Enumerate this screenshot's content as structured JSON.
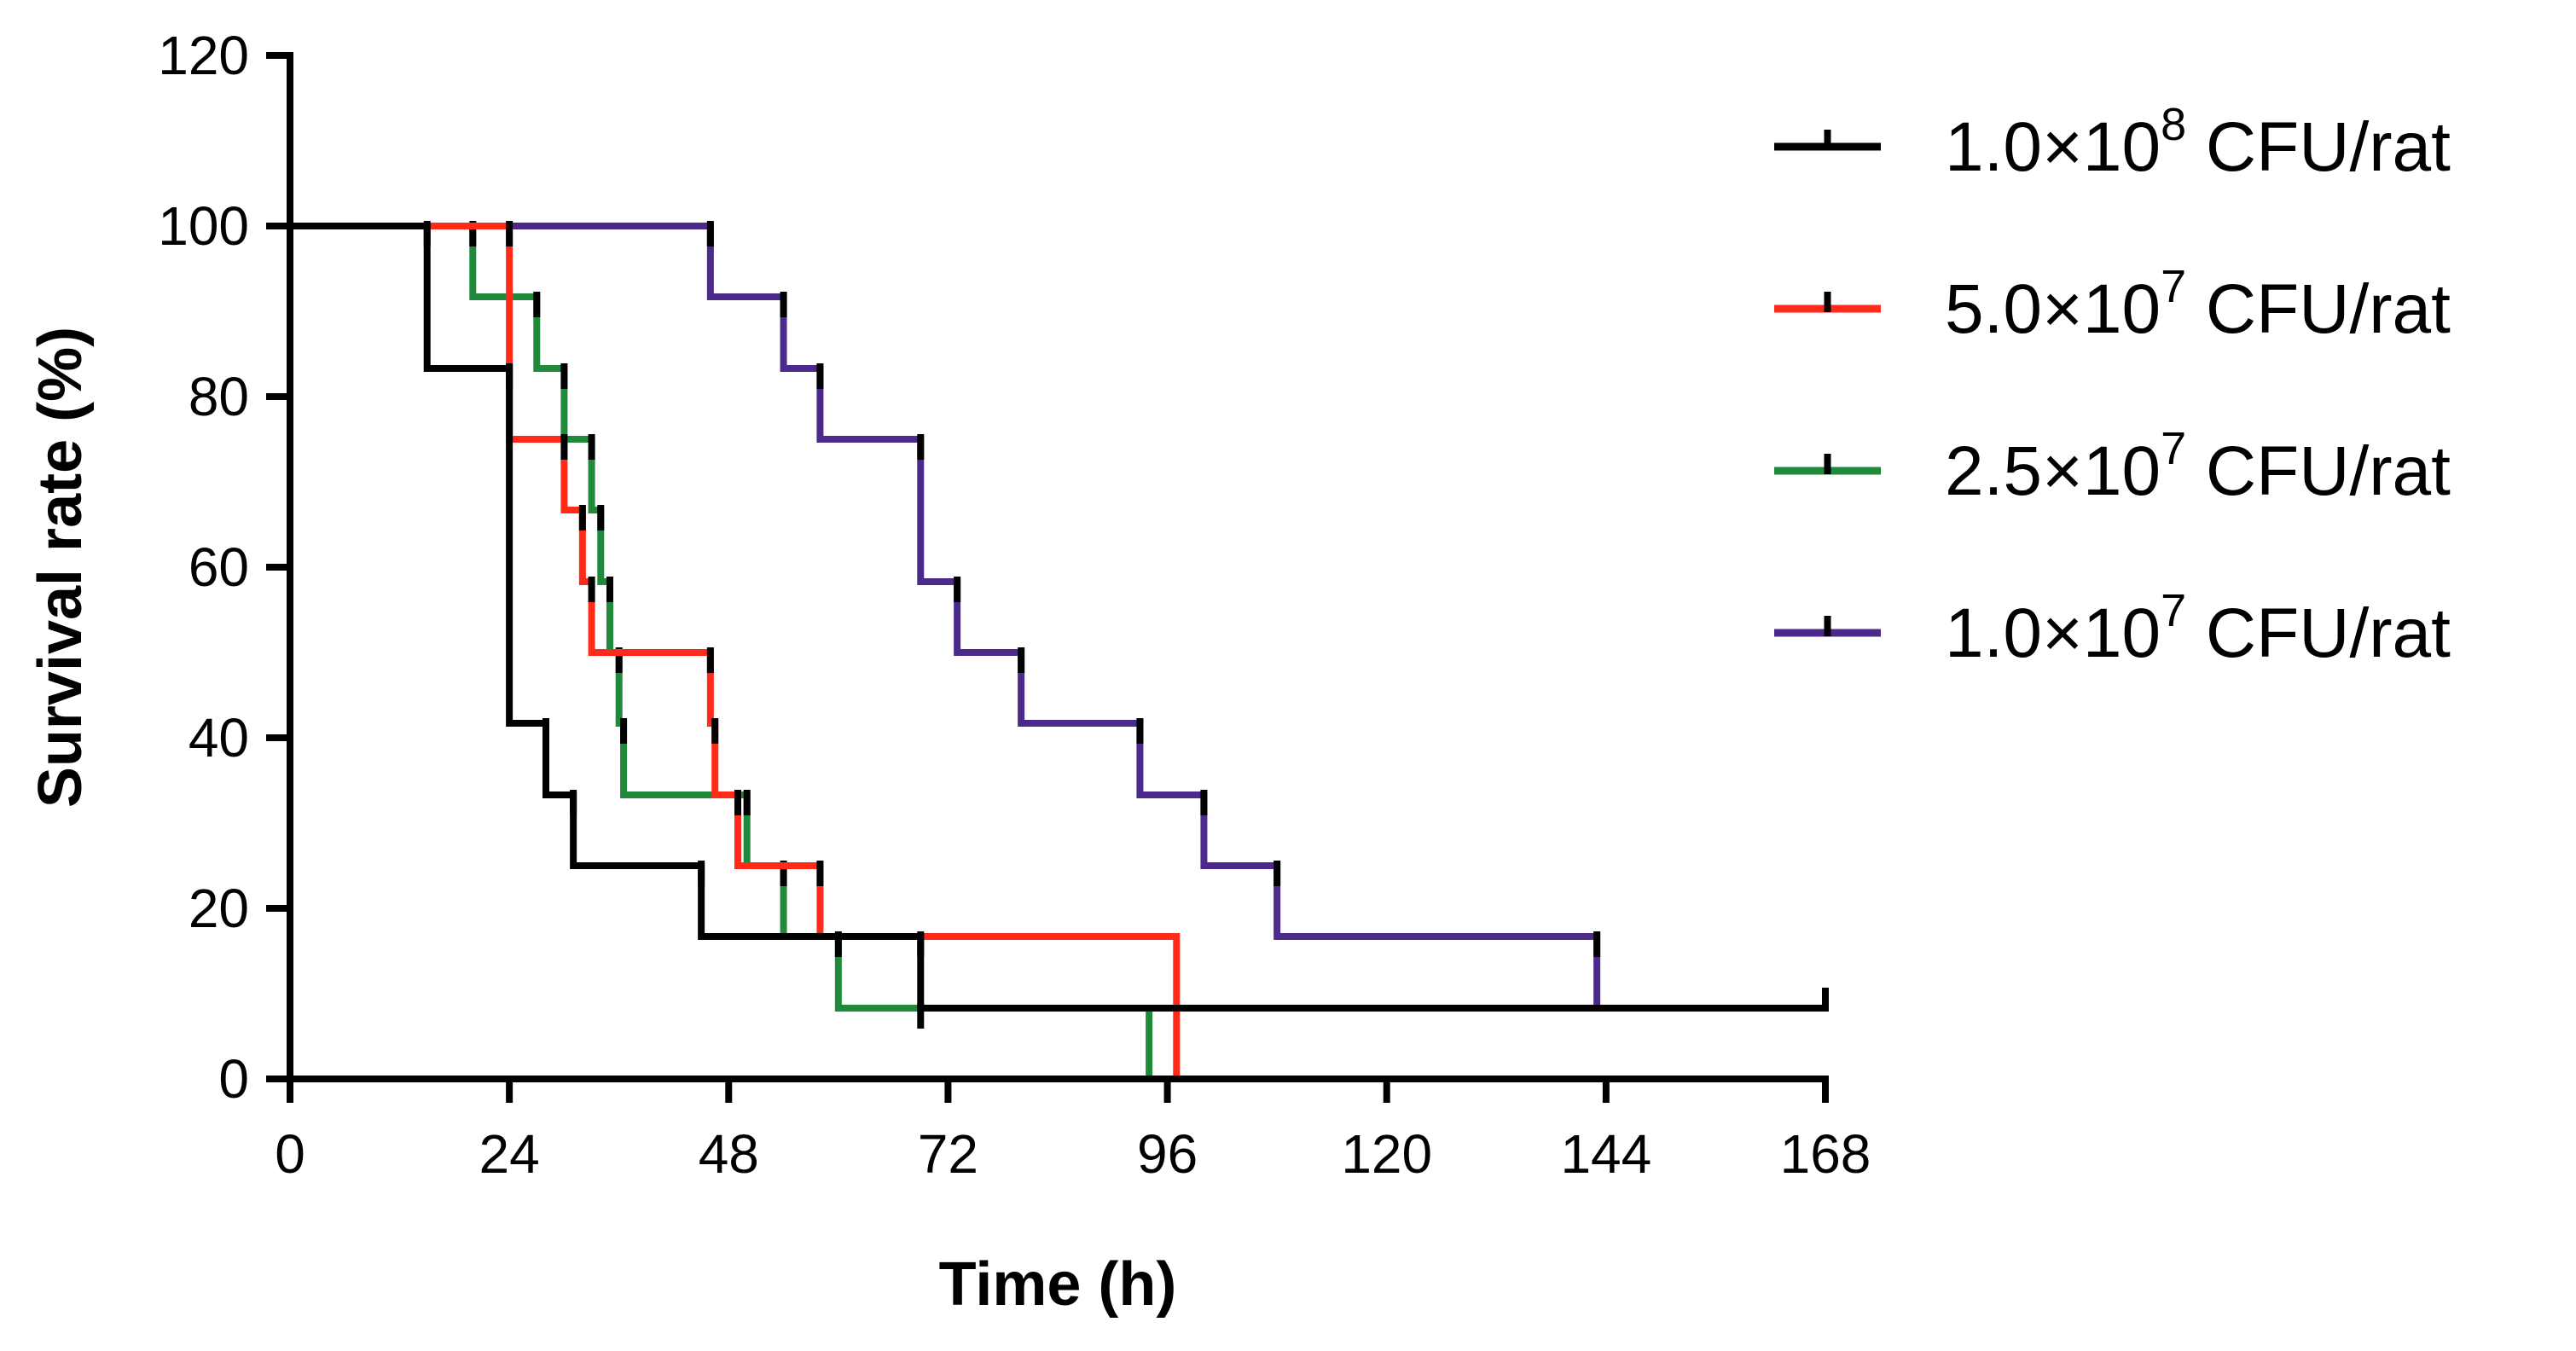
{
  "chart_data": {
    "type": "line",
    "subtype": "kaplan-meier step",
    "title": "",
    "xlabel": "Time (h)",
    "ylabel": "Survival rate (%)",
    "xlim": [
      0,
      168
    ],
    "ylim": [
      0,
      120
    ],
    "xticks": [
      0,
      24,
      48,
      72,
      96,
      120,
      144,
      168
    ],
    "yticks": [
      0,
      20,
      40,
      60,
      80,
      100,
      120
    ],
    "grid": false,
    "legend_position": "right",
    "series": [
      {
        "name": "1.0×10^8 CFU/rat",
        "label_main": "1.0×10",
        "label_exp": "8",
        "label_unit": " CFU/rat",
        "color": "#000000",
        "start": 100,
        "steps": [
          [
            15,
            83.3
          ],
          [
            24,
            41.7
          ],
          [
            28,
            33.3
          ],
          [
            31,
            25
          ],
          [
            45,
            16.7
          ],
          [
            69,
            8.3
          ]
        ],
        "end_time": 168,
        "censored": [
          [
            168,
            8.3
          ]
        ]
      },
      {
        "name": "5.0×10^7 CFU/rat",
        "label_main": "5.0×10",
        "label_exp": "7",
        "label_unit": " CFU/rat",
        "color": "#ff2a1a",
        "start": 100,
        "steps": [
          [
            24,
            75
          ],
          [
            30,
            66.7
          ],
          [
            32,
            58.3
          ],
          [
            33,
            50
          ],
          [
            46,
            41.7
          ],
          [
            46.5,
            33.3
          ],
          [
            49,
            25
          ],
          [
            58,
            16.7
          ],
          [
            97,
            0
          ]
        ],
        "end_time": 97,
        "censored": []
      },
      {
        "name": "2.5×10^7 CFU/rat",
        "label_main": "2.5×10",
        "label_exp": "7",
        "label_unit": " CFU/rat",
        "color": "#1f8a3c",
        "start": 100,
        "steps": [
          [
            20,
            91.7
          ],
          [
            27,
            83.3
          ],
          [
            30,
            75
          ],
          [
            33,
            66.7
          ],
          [
            34,
            58.3
          ],
          [
            35,
            50
          ],
          [
            36,
            41.7
          ],
          [
            36.5,
            33.3
          ],
          [
            50,
            25
          ],
          [
            54,
            16.7
          ],
          [
            60,
            8.3
          ],
          [
            69,
            8.3
          ],
          [
            94,
            0
          ]
        ],
        "end_time": 94,
        "censored": []
      },
      {
        "name": "1.0×10^7 CFU/rat",
        "label_main": "1.0×10",
        "label_exp": "7",
        "label_unit": " CFU/rat",
        "color": "#4b2a8c",
        "start": 100,
        "steps": [
          [
            46,
            91.7
          ],
          [
            54,
            83.3
          ],
          [
            58,
            75
          ],
          [
            69,
            58.3
          ],
          [
            73,
            50
          ],
          [
            80,
            41.7
          ],
          [
            93,
            33.3
          ],
          [
            100,
            25
          ],
          [
            108,
            16.7
          ],
          [
            143,
            8.3
          ]
        ],
        "end_time": 143,
        "censored": []
      }
    ]
  }
}
